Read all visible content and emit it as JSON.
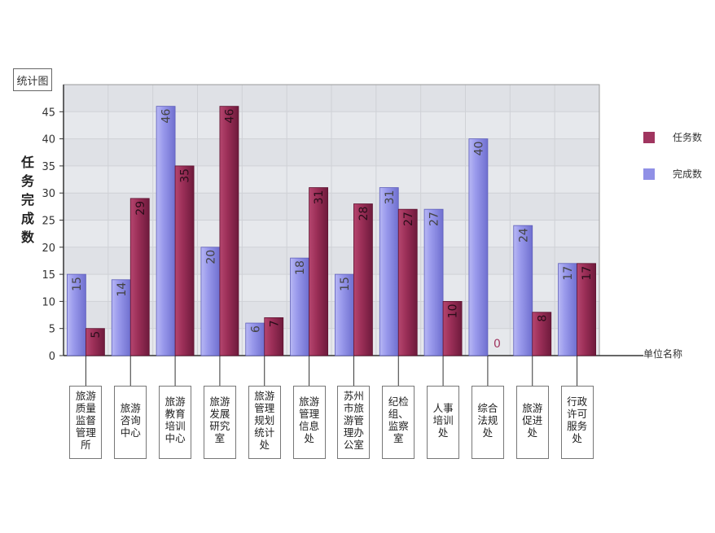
{
  "title_box": "统计图",
  "y_axis_label": "任务完成数",
  "unit_label": "单位名称",
  "legend": [
    {
      "name": "任务数",
      "color": "#a0355f"
    },
    {
      "name": "完成数",
      "color": "#9090e6"
    }
  ],
  "chart_data": {
    "type": "bar",
    "ylabel": "任务完成数",
    "xlabel": "单位名称",
    "ylim": [
      0,
      50
    ],
    "yticks": [
      0,
      5,
      10,
      15,
      20,
      25,
      30,
      35,
      40,
      45
    ],
    "categories": [
      "旅游质量监督管理所",
      "旅游咨询中心",
      "旅游教育培训中心",
      "旅游发展研究室",
      "旅游管理规划统计处",
      "旅游管理信息处",
      "苏州市旅游管理办公室",
      "纪检组、监察室",
      "人事培训处",
      "综合法规处",
      "旅游促进处",
      "行政许可服务处"
    ],
    "category_lines": [
      [
        "旅游",
        "质量",
        "监督",
        "管理",
        "所"
      ],
      [
        "旅游",
        "咨询",
        "中心"
      ],
      [
        "旅游",
        "教育",
        "培训",
        "中心"
      ],
      [
        "旅游",
        "发展",
        "研究",
        "室"
      ],
      [
        "旅游",
        "管理",
        "规划",
        "统计",
        "处"
      ],
      [
        "旅游",
        "管理",
        "信息",
        "处"
      ],
      [
        "苏州",
        "市旅",
        "游管",
        "理办",
        "公室"
      ],
      [
        "纪检",
        "组、",
        "监察",
        "室"
      ],
      [
        "人事",
        "培训",
        "处"
      ],
      [
        "综合",
        "法规",
        "处"
      ],
      [
        "旅游",
        "促进",
        "处"
      ],
      [
        "行政",
        "许可",
        "服务",
        "处"
      ]
    ],
    "series": [
      {
        "name": "完成数",
        "color": "#9090e6",
        "values": [
          15,
          14,
          46,
          20,
          6,
          18,
          15,
          31,
          27,
          40,
          24,
          17
        ]
      },
      {
        "name": "任务数",
        "color": "#a0355f",
        "values": [
          5,
          29,
          35,
          46,
          7,
          31,
          28,
          27,
          10,
          0,
          8,
          17
        ]
      }
    ],
    "grid": true,
    "legend_position": "right"
  }
}
